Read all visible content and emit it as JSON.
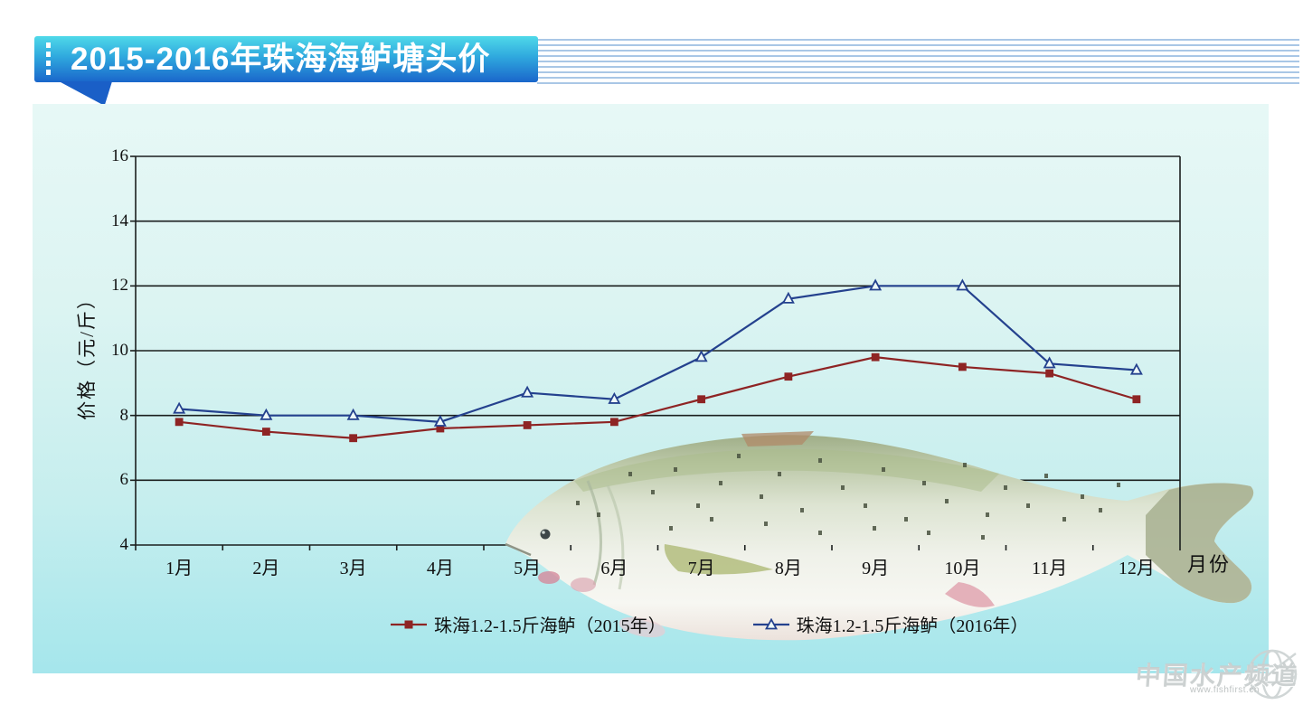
{
  "header": {
    "title": "2015-2016年珠海海鲈塘头价"
  },
  "chart_data": {
    "type": "line",
    "title": "2015-2016年珠海海鲈塘头价",
    "categories": [
      "1月",
      "2月",
      "3月",
      "4月",
      "5月",
      "6月",
      "7月",
      "8月",
      "9月",
      "10月",
      "11月",
      "12月"
    ],
    "series": [
      {
        "name": "珠海1.2-1.5斤海鲈（2015年）",
        "marker": "square",
        "color": "#8e2424",
        "values": [
          7.8,
          7.5,
          7.3,
          7.6,
          7.7,
          7.8,
          8.5,
          9.2,
          9.8,
          9.5,
          9.3,
          8.5
        ]
      },
      {
        "name": "珠海1.2-1.5斤海鲈（2016年）",
        "marker": "triangle",
        "color": "#24418e",
        "values": [
          8.2,
          8.0,
          8.0,
          7.8,
          8.7,
          8.5,
          9.8,
          11.6,
          12.0,
          12.0,
          9.6,
          9.4
        ]
      }
    ],
    "xlabel": "月份",
    "ylabel": "价格（元/斤）",
    "ylim": [
      4,
      16
    ],
    "yticks": [
      16,
      14,
      12,
      10,
      8,
      6,
      4
    ],
    "grid": true,
    "grid_color": "#1b1f1e",
    "legend_position": "bottom"
  },
  "watermark": {
    "name": "中国水产频道",
    "url": "www.fishfirst.cn"
  }
}
